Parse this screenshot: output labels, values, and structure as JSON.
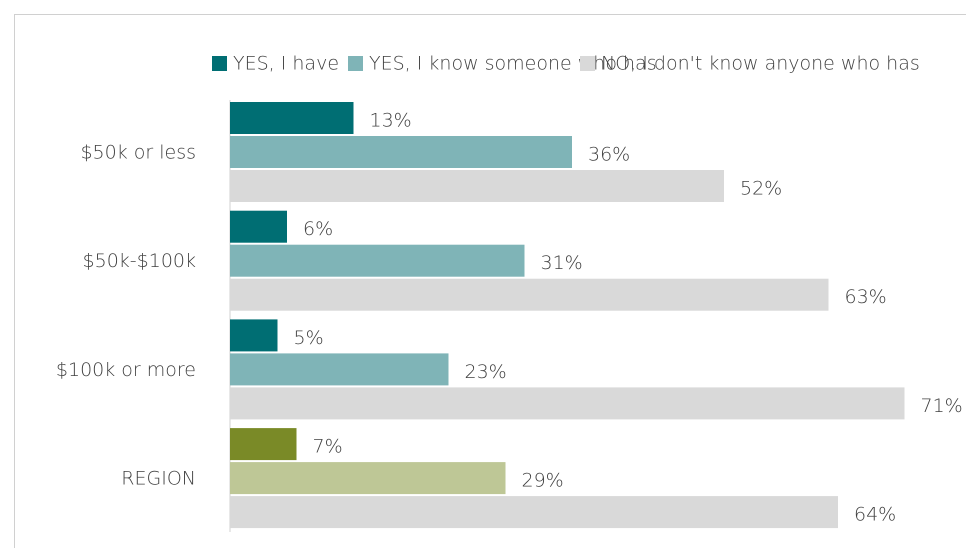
{
  "chart_data": {
    "type": "bar",
    "orientation": "horizontal",
    "categories": [
      "$50k or less",
      "$50k-$100k",
      "$100k or more",
      "REGION"
    ],
    "series": [
      {
        "name": "YES, I have",
        "color": "#006e73",
        "colors": [
          "#006e73",
          "#006e73",
          "#006e73",
          "#7a8a27"
        ],
        "values": [
          13,
          6,
          5,
          7
        ],
        "value_labels": [
          "13%",
          "6%",
          "5%",
          "7%"
        ]
      },
      {
        "name": "YES, I know someone who has",
        "color": "#7fb4b7",
        "colors": [
          "#7fb4b7",
          "#7fb4b7",
          "#7fb4b7",
          "#bec796"
        ],
        "values": [
          36,
          31,
          23,
          29
        ],
        "value_labels": [
          "36%",
          "31%",
          "23%",
          "29%"
        ]
      },
      {
        "name": "NO, I don't know anyone who has",
        "color": "#d9d9d9",
        "colors": [
          "#d9d9d9",
          "#d9d9d9",
          "#d9d9d9",
          "#d9d9d9"
        ],
        "values": [
          52,
          63,
          71,
          64
        ],
        "value_labels": [
          "52%",
          "63%",
          "71%",
          "64%"
        ]
      }
    ],
    "legend": "top"
  }
}
